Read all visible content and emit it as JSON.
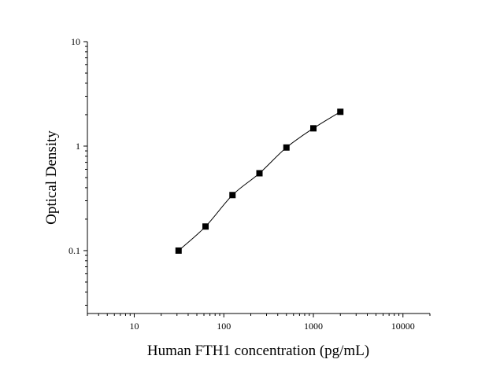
{
  "chart_data": {
    "type": "scatter",
    "xlabel": "Human FTH1 concentration (pg/mL)",
    "ylabel": "Optical Density",
    "xscale": "log",
    "yscale": "log",
    "xlim": [
      3,
      20000
    ],
    "ylim": [
      0.025,
      10
    ],
    "x_tick_labels": [
      "10",
      "100",
      "1000",
      "10000"
    ],
    "x_ticks": [
      10,
      100,
      1000,
      10000
    ],
    "y_tick_labels": [
      "0.1",
      "1",
      "10"
    ],
    "y_ticks": [
      0.1,
      1,
      10
    ],
    "grid": false,
    "series": [
      {
        "marker": "square",
        "x": [
          31.25,
          62.5,
          125,
          250,
          500,
          1000,
          2000
        ],
        "y": [
          0.1,
          0.17,
          0.34,
          0.55,
          0.97,
          1.48,
          2.13
        ]
      }
    ],
    "fit_curve": true
  }
}
